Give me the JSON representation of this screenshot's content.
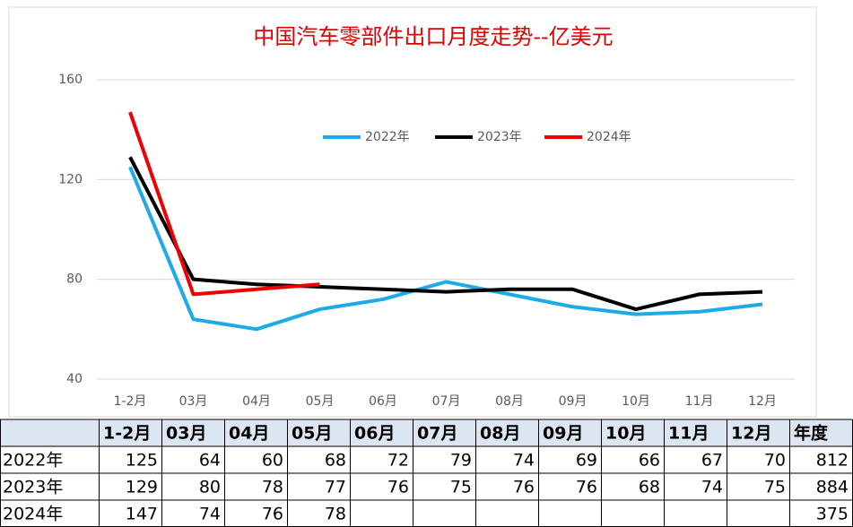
{
  "chart_data": {
    "type": "line",
    "title": "中国汽车零部件出口月度走势--亿美元",
    "categories": [
      "1-2月",
      "03月",
      "04月",
      "05月",
      "06月",
      "07月",
      "08月",
      "09月",
      "10月",
      "11月",
      "12月"
    ],
    "series": [
      {
        "name": "2022年",
        "color": "#1eaae6",
        "values": [
          125,
          64,
          60,
          68,
          72,
          79,
          74,
          69,
          66,
          67,
          70
        ],
        "annual_total": 812
      },
      {
        "name": "2023年",
        "color": "#000000",
        "values": [
          129,
          80,
          78,
          77,
          76,
          75,
          76,
          76,
          68,
          74,
          75
        ],
        "annual_total": 884
      },
      {
        "name": "2024年",
        "color": "#ee0000",
        "values": [
          147,
          74,
          76,
          78,
          null,
          null,
          null,
          null,
          null,
          null,
          null
        ],
        "annual_total": 375
      }
    ],
    "ylim": [
      40,
      160
    ],
    "yticks": [
      40,
      80,
      120,
      160
    ],
    "grid": true,
    "legend": "top"
  },
  "table": {
    "total_header": "年度"
  }
}
